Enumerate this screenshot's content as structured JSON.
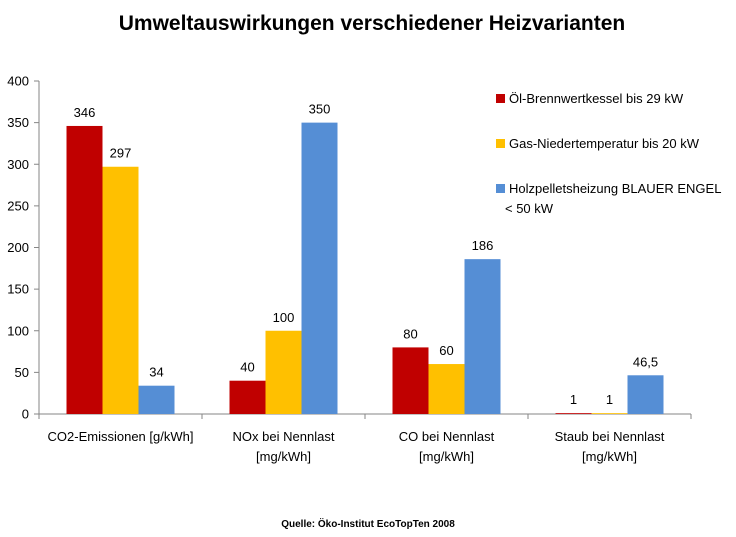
{
  "chart_data": {
    "type": "bar",
    "title": "Umweltauswirkungen verschiedener Heizvarianten",
    "categories": [
      [
        "CO2-Emissionen [g/kWh]"
      ],
      [
        "NOx bei Nennlast",
        "[mg/kWh]"
      ],
      [
        "CO bei Nennlast",
        "[mg/kWh]"
      ],
      [
        "Staub bei Nennlast",
        "[mg/kWh]"
      ]
    ],
    "series": [
      {
        "name": [
          "Öl-Brennwertkessel bis 29 kW"
        ],
        "color": "#C00000",
        "values": [
          346,
          40,
          80,
          1
        ],
        "labels": [
          "346",
          "40",
          "80",
          "1"
        ]
      },
      {
        "name": [
          "Gas-Niedertemperatur  bis 20 kW"
        ],
        "color": "#FFC000",
        "values": [
          297,
          100,
          60,
          1
        ],
        "labels": [
          "297",
          "100",
          "60",
          "1"
        ]
      },
      {
        "name": [
          "Holzpelletsheizung BLAUER ENGEL",
          "< 50 kW"
        ],
        "color": "#558ED5",
        "values": [
          34,
          350,
          186,
          46.5
        ],
        "labels": [
          "34",
          "350",
          "186",
          "46,5"
        ]
      }
    ],
    "ylim": [
      0,
      400
    ],
    "yticks": [
      0,
      50,
      100,
      150,
      200,
      250,
      300,
      350,
      400
    ],
    "grid": false,
    "legend": "top-right",
    "source": "Quelle: Öko-Institut EcoTopTen  2008"
  }
}
